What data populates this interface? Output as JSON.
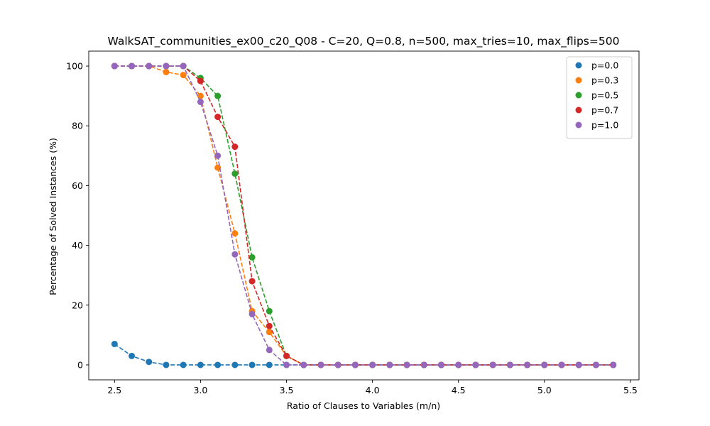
{
  "chart_data": {
    "type": "scatter",
    "title": "WalkSAT_communities_ex00_c20_Q08 - C=20, Q=0.8, n=500, max_tries=10, max_flips=500",
    "xlabel": "Ratio of Clauses to Variables (m/n)",
    "ylabel": "Percentage of Solved Instances (%)",
    "xlim": [
      2.35,
      5.55
    ],
    "ylim": [
      -5,
      105
    ],
    "xticks": [
      2.5,
      3.0,
      3.5,
      4.0,
      4.5,
      5.0,
      5.5
    ],
    "xtick_labels": [
      "2.5",
      "3.0",
      "3.5",
      "4.0",
      "4.5",
      "5.0",
      "5.5"
    ],
    "yticks": [
      0,
      20,
      40,
      60,
      80,
      100
    ],
    "ytick_labels": [
      "0",
      "20",
      "40",
      "60",
      "80",
      "100"
    ],
    "grid": false,
    "legend_position": "top-right",
    "line_style": "dashed",
    "x": [
      2.5,
      2.6,
      2.7,
      2.8,
      2.9,
      3.0,
      3.1,
      3.2,
      3.3,
      3.4,
      3.5,
      3.6,
      3.7,
      3.8,
      3.9,
      4.0,
      4.1,
      4.2,
      4.3,
      4.4,
      4.5,
      4.6,
      4.7,
      4.8,
      4.9,
      5.0,
      5.1,
      5.2,
      5.3,
      5.4
    ],
    "series": [
      {
        "name": "p=0.0",
        "color": "#1f77b4",
        "values": [
          7,
          3,
          1,
          0,
          0,
          0,
          0,
          0,
          0,
          0,
          0,
          0,
          0,
          0,
          0,
          0,
          0,
          0,
          0,
          0,
          0,
          0,
          0,
          0,
          0,
          0,
          0,
          0,
          0,
          0
        ]
      },
      {
        "name": "p=0.3",
        "color": "#ff7f0e",
        "values": [
          100,
          100,
          100,
          98,
          97,
          90,
          66,
          44,
          18,
          11,
          3,
          0,
          0,
          0,
          0,
          0,
          0,
          0,
          0,
          0,
          0,
          0,
          0,
          0,
          0,
          0,
          0,
          0,
          0,
          0
        ]
      },
      {
        "name": "p=0.5",
        "color": "#2ca02c",
        "values": [
          100,
          100,
          100,
          100,
          100,
          96,
          90,
          64,
          36,
          18,
          3,
          0,
          0,
          0,
          0,
          0,
          0,
          0,
          0,
          0,
          0,
          0,
          0,
          0,
          0,
          0,
          0,
          0,
          0,
          0
        ]
      },
      {
        "name": "p=0.7",
        "color": "#d62728",
        "values": [
          100,
          100,
          100,
          100,
          100,
          95,
          83,
          73,
          28,
          13,
          3,
          0,
          0,
          0,
          0,
          0,
          0,
          0,
          0,
          0,
          0,
          0,
          0,
          0,
          0,
          0,
          0,
          0,
          0,
          0
        ]
      },
      {
        "name": "p=1.0",
        "color": "#9467bd",
        "values": [
          100,
          100,
          100,
          100,
          100,
          88,
          70,
          37,
          17,
          5,
          0,
          0,
          0,
          0,
          0,
          0,
          0,
          0,
          0,
          0,
          0,
          0,
          0,
          0,
          0,
          0,
          0,
          0,
          0,
          0
        ]
      }
    ]
  }
}
